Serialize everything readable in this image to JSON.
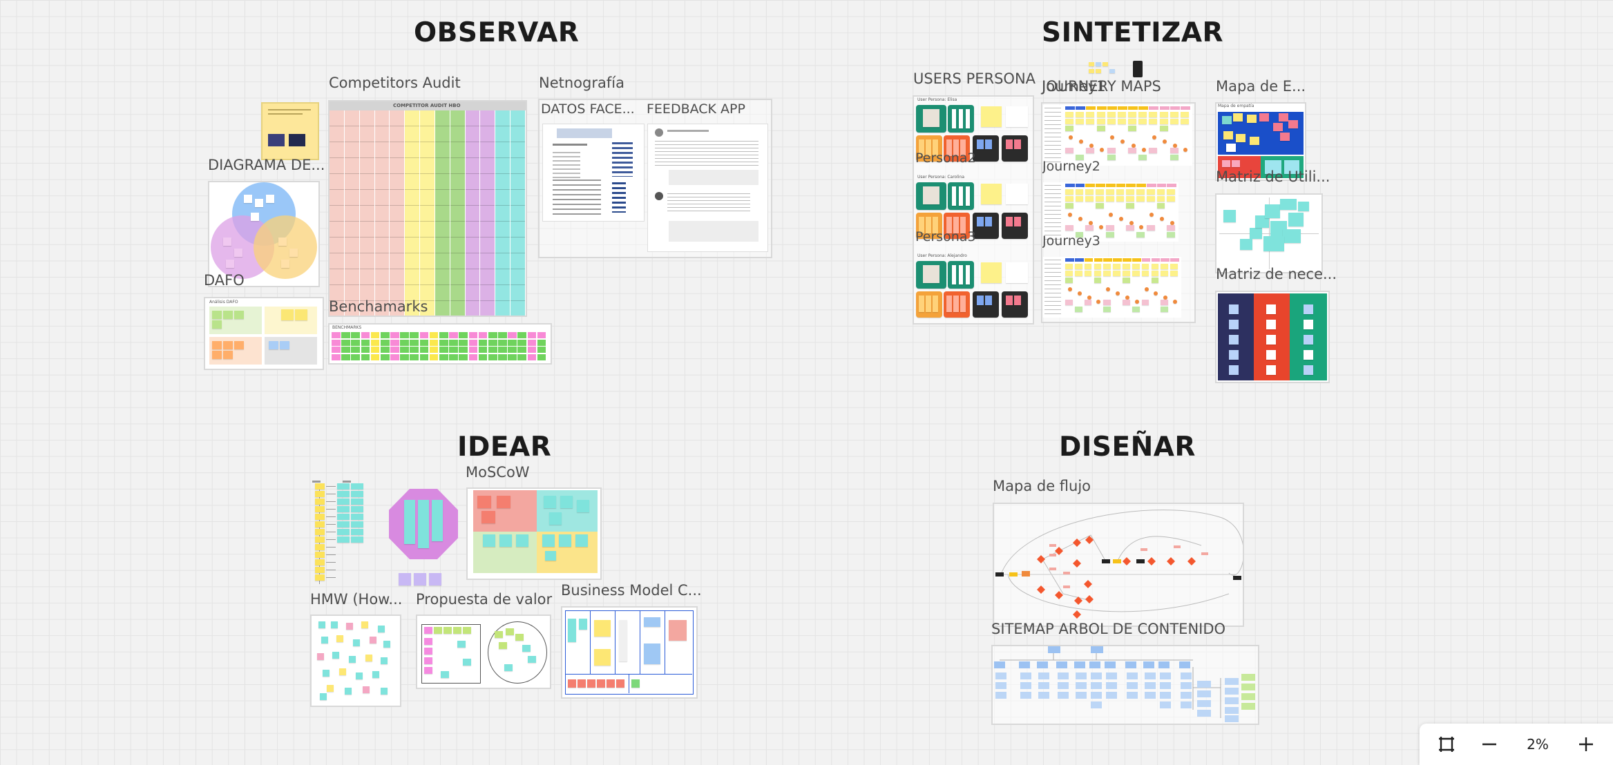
{
  "sections": {
    "observar": "OBSERVAR",
    "sintetizar": "SINTETIZAR",
    "idear": "IDEAR",
    "disenar": "DISEÑAR"
  },
  "frames": {
    "competitors_audit": "Competitors Audit",
    "netnografia": "Netnografía",
    "datos_face": "DATOS FACE...",
    "feedback_app": "FEEDBACK APP",
    "diagrama": "DIAGRAMA DE...",
    "dafo": "DAFO",
    "benchamarks": "Benchamarks",
    "users_persona": "USERS PERSONA",
    "persona2": "Persona2",
    "persona3": "Persona3",
    "journey_maps": "JOURNERY MAPS",
    "journey1": "Journey1",
    "journey2": "Journey2",
    "journey3": "Journey3",
    "mapa_e": "Mapa de E...",
    "matriz_util": "Matriz de Utili...",
    "matriz_nece": "Matriz de nece...",
    "moscow": "MoSCoW",
    "hmw": "HMW (How...",
    "propuesta": "Propuesta de valor",
    "business_model": "Business Model C...",
    "mapa_flujo": "Mapa de flujo",
    "sitemap": "SITEMAP ARBOL DE CONTENIDO"
  },
  "mini_text": {
    "competitor_audit_header": "COMPETITOR AUDIT HBO",
    "analisis_dafo": "Análisis DAFO",
    "benchmarks_header": "BENCHMARKS",
    "persona1_name": "User Persona: Elisa",
    "persona2_name": "User Persona: Carolina",
    "persona3_name": "User Persona: Alejandro",
    "mapa_empatia": "Mapa de empatía"
  },
  "zoom": {
    "fit_icon": "fit-to-screen-icon",
    "zoom_out_icon": "minus-icon",
    "zoom_in_icon": "plus-icon",
    "level": "2%"
  },
  "colors": {
    "yellow": "#fdf18a",
    "teal": "#7fe3dc",
    "pink": "#f3a7a0",
    "green": "#a8dc7a",
    "blue": "#8ec0f2",
    "orange": "#ff8b45",
    "purple": "#d9a6e8",
    "dark": "#2e2e2e",
    "navy": "#2d3060",
    "red": "#e8452c",
    "emerald": "#1aa57c"
  }
}
